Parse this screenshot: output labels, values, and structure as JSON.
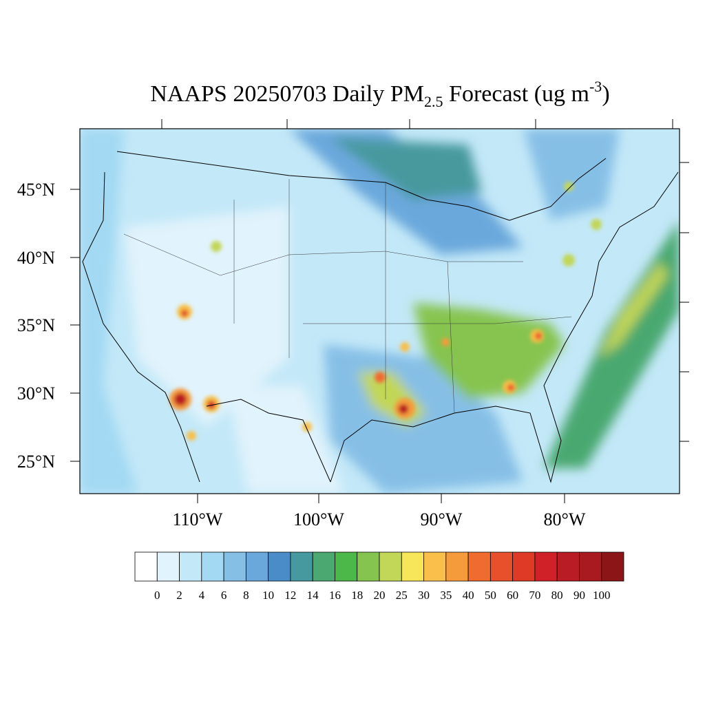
{
  "title": {
    "main": "NAAPS 20250703 Daily PM",
    "subscript": "2.5",
    "middle": " Forecast (ug m",
    "superscript": "-3",
    "end": ")"
  },
  "lat_labels": [
    "45°N",
    "40°N",
    "35°N",
    "30°N",
    "25°N"
  ],
  "lon_labels": [
    "110°W",
    "100°W",
    "90°W",
    "80°W"
  ],
  "colorbar": {
    "labels": [
      0,
      2,
      4,
      6,
      8,
      10,
      12,
      14,
      16,
      18,
      20,
      25,
      30,
      35,
      40,
      50,
      60,
      70,
      80,
      90,
      100
    ],
    "colors": [
      "#ffffff",
      "#e1f3fc",
      "#c3e8f8",
      "#a3d9f3",
      "#86bfe6",
      "#6aa8dc",
      "#4a8cc8",
      "#46999e",
      "#4aa870",
      "#4db84a",
      "#86c450",
      "#c2d657",
      "#f7e65a",
      "#f8c04a",
      "#f59b3c",
      "#f06b2e",
      "#e7502b",
      "#de3a26",
      "#d02128",
      "#b91c24",
      "#a81a20",
      "#8c1518"
    ]
  }
}
